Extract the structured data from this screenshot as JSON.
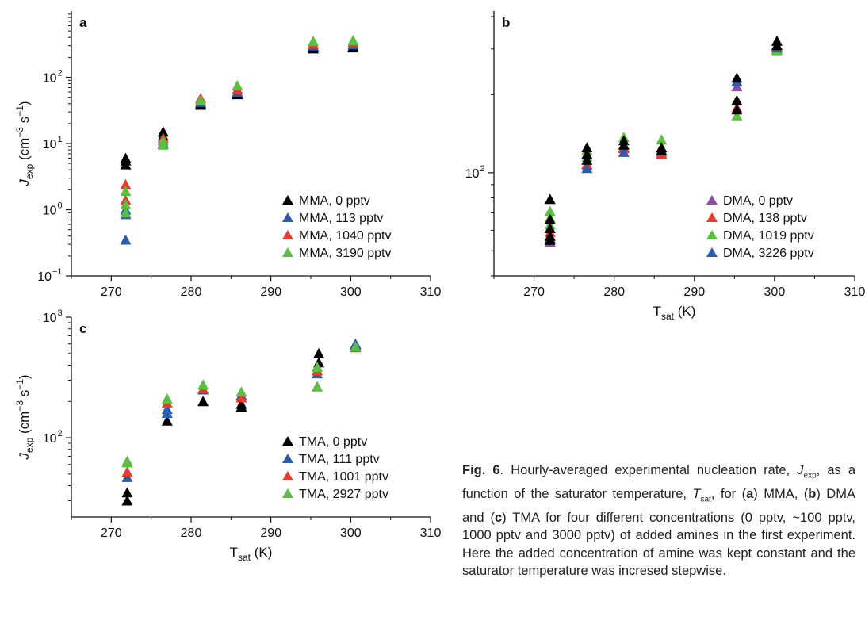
{
  "chart_data": [
    {
      "panel": "a",
      "type": "scatter",
      "ylabel": "J_exp (cm−3 s−1)",
      "xlabel": "",
      "xlim": [
        265,
        310
      ],
      "xticks": [
        "270",
        "280",
        "290",
        "300",
        "310"
      ],
      "yscale": "log",
      "ylim": [
        0.1,
        1000
      ],
      "yticks": [
        {
          "value": 0.1,
          "base": "10",
          "exp": "−1"
        },
        {
          "value": 1,
          "base": "10",
          "exp": "0"
        },
        {
          "value": 10,
          "base": "10",
          "exp": "1"
        },
        {
          "value": 100,
          "base": "10",
          "exp": "2"
        }
      ],
      "legend_position": "bottom-right",
      "series": [
        {
          "name": "MMA, 0 pptv",
          "color": "#000000",
          "points": [
            [
              271.8,
              4.8
            ],
            [
              271.8,
              5.5
            ],
            [
              271.8,
              6.0
            ],
            [
              276.5,
              11
            ],
            [
              276.5,
              13
            ],
            [
              276.5,
              15
            ],
            [
              281.2,
              40
            ],
            [
              281.2,
              38
            ],
            [
              285.8,
              55
            ],
            [
              285.8,
              58
            ],
            [
              295.3,
              270
            ],
            [
              295.3,
              290
            ],
            [
              300.3,
              280
            ],
            [
              300.3,
              290
            ]
          ]
        },
        {
          "name": "MMA, 113 pptv",
          "color": "#2a5db0",
          "points": [
            [
              271.8,
              0.35
            ],
            [
              271.8,
              0.85
            ],
            [
              271.8,
              1.0
            ],
            [
              276.5,
              10
            ],
            [
              281.2,
              42
            ],
            [
              285.8,
              60
            ],
            [
              295.3,
              300
            ],
            [
              300.3,
              310
            ]
          ]
        },
        {
          "name": "MMA, 1040 pptv",
          "color": "#e83a2e",
          "points": [
            [
              271.8,
              1.4
            ],
            [
              271.8,
              2.4
            ],
            [
              276.5,
              12
            ],
            [
              281.2,
              48
            ],
            [
              285.8,
              66
            ],
            [
              295.3,
              320
            ],
            [
              300.3,
              335
            ]
          ]
        },
        {
          "name": "MMA, 3190 pptv",
          "color": "#5cbf3f",
          "points": [
            [
              271.8,
              0.9
            ],
            [
              271.8,
              1.2
            ],
            [
              271.8,
              1.9
            ],
            [
              276.5,
              9.5
            ],
            [
              276.5,
              11
            ],
            [
              281.2,
              45
            ],
            [
              285.8,
              75
            ],
            [
              295.3,
              350
            ],
            [
              300.3,
              360
            ]
          ]
        }
      ]
    },
    {
      "panel": "b",
      "type": "scatter",
      "xlabel": "Tsat (K)",
      "ylabel": "",
      "xlim": [
        265,
        310
      ],
      "xticks": [
        "270",
        "280",
        "290",
        "300",
        "310"
      ],
      "yscale": "log",
      "ylim": [
        40,
        420
      ],
      "yticks": [
        {
          "value": 100,
          "base": "10",
          "exp": "2"
        }
      ],
      "legend_position": "bottom-right",
      "series": [
        {
          "name": "DMA, 0 pptv",
          "color": "#8e4fa8",
          "points": [
            [
              272.0,
              54
            ],
            [
              276.6,
              107
            ],
            [
              281.2,
              125
            ],
            [
              285.9,
              120
            ],
            [
              295.3,
              215
            ],
            [
              300.3,
              310
            ]
          ]
        },
        {
          "name": "DMA, 138 pptv",
          "color": "#e83a2e",
          "points": [
            [
              272.0,
              57
            ],
            [
              272.0,
              59
            ],
            [
              276.6,
              108
            ],
            [
              281.2,
              124
            ],
            [
              285.9,
              118
            ],
            [
              295.3,
              178
            ],
            [
              300.3,
              300
            ]
          ]
        },
        {
          "name": "DMA, 1019 pptv",
          "color": "#5cbf3f",
          "points": [
            [
              272.0,
              63
            ],
            [
              272.0,
              67
            ],
            [
              272.0,
              71
            ],
            [
              276.6,
              115
            ],
            [
              276.6,
              122
            ],
            [
              281.2,
              137
            ],
            [
              285.9,
              134
            ],
            [
              295.3,
              166
            ],
            [
              300.3,
              296
            ]
          ]
        },
        {
          "name": "DMA, 3226 pptv",
          "color": "#2a5db0",
          "points": [
            [
              272.0,
              56
            ],
            [
              276.6,
              104
            ],
            [
              281.2,
              120
            ],
            [
              295.3,
              225
            ],
            [
              300.3,
              305
            ]
          ]
        },
        {
          "name": "",
          "color": "#000000",
          "points": [
            [
              272.0,
              55
            ],
            [
              272.0,
              57
            ],
            [
              272.0,
              61
            ],
            [
              272.0,
              66
            ],
            [
              272.0,
              79
            ],
            [
              276.6,
              112
            ],
            [
              276.6,
              118
            ],
            [
              276.6,
              125
            ],
            [
              281.2,
              128
            ],
            [
              281.2,
              133
            ],
            [
              285.9,
              122
            ],
            [
              285.9,
              125
            ],
            [
              295.3,
              175
            ],
            [
              295.3,
              190
            ],
            [
              295.3,
              232
            ],
            [
              300.3,
              310
            ],
            [
              300.3,
              322
            ]
          ]
        }
      ]
    },
    {
      "panel": "c",
      "type": "scatter",
      "xlabel": "Tsat (K)",
      "ylabel": "J_exp (cm−3 s−1)",
      "xlim": [
        265,
        310
      ],
      "xticks": [
        "270",
        "280",
        "290",
        "300",
        "310"
      ],
      "yscale": "log",
      "ylim": [
        22,
        1000
      ],
      "yticks": [
        {
          "value": 100,
          "base": "10",
          "exp": "2"
        },
        {
          "value": 1000,
          "base": "10",
          "exp": "3"
        }
      ],
      "legend_position": "bottom-right",
      "series": [
        {
          "name": "TMA, 0 pptv",
          "color": "#000000",
          "points": [
            [
              272.0,
              30
            ],
            [
              272.0,
              35
            ],
            [
              277.0,
              138
            ],
            [
              281.5,
              200
            ],
            [
              286.3,
              180
            ],
            [
              286.3,
              190
            ],
            [
              296.0,
              420
            ],
            [
              296.0,
              500
            ],
            [
              300.6,
              590
            ]
          ]
        },
        {
          "name": "TMA, 111 pptv",
          "color": "#2a5db0",
          "points": [
            [
              272.0,
              47
            ],
            [
              277.0,
              160
            ],
            [
              277.0,
              172
            ],
            [
              281.5,
              250
            ],
            [
              286.3,
              225
            ],
            [
              295.8,
              265
            ],
            [
              295.8,
              340
            ],
            [
              300.6,
              600
            ]
          ]
        },
        {
          "name": "TMA, 1001 pptv",
          "color": "#e83a2e",
          "points": [
            [
              272.0,
              52
            ],
            [
              277.0,
              195
            ],
            [
              281.5,
              255
            ],
            [
              286.3,
              215
            ],
            [
              295.8,
              360
            ],
            [
              300.6,
              560
            ]
          ]
        },
        {
          "name": "TMA, 2927 pptv",
          "color": "#5cbf3f",
          "points": [
            [
              272.0,
              62
            ],
            [
              272.0,
              64
            ],
            [
              277.0,
              210
            ],
            [
              281.5,
              275
            ],
            [
              286.3,
              240
            ],
            [
              295.8,
              265
            ],
            [
              295.8,
              385
            ],
            [
              300.6,
              570
            ]
          ]
        }
      ]
    }
  ],
  "caption": {
    "label": "Fig. 6",
    "line1": ". Hourly-averaged experimental nucleation rate,",
    "j": "J",
    "j_sub": "exp",
    "line2a": ", as a function of the saturator temperature, ",
    "t": "T",
    "t_sub": "sat",
    "line2b": ",",
    "for_text": "for (",
    "a": "a",
    "mma": ") MMA, (",
    "b": "b",
    "dma": ") DMA and (",
    "c": "c",
    "rest": ") TMA for four different concentrations (0 pptv, ~100 pptv, 1000 pptv and 3000 pptv) of added amines in the first experiment. Here the added concentration of amine was kept constant and the saturator temperature was incresed stepwise."
  }
}
